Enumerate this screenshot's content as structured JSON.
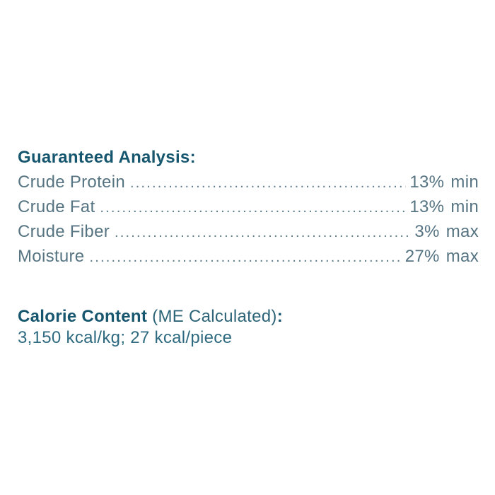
{
  "colors": {
    "heading": "#16566e",
    "body_text": "#567482",
    "dot_leader": "#5e7b89",
    "calorie_value_text": "#2e6a80",
    "background": "#ffffff"
  },
  "guaranteed_analysis": {
    "heading": "Guaranteed Analysis:",
    "rows": [
      {
        "label": "Crude Protein",
        "value": "13%",
        "qualifier": "min"
      },
      {
        "label": "Crude Fat",
        "value": "13%",
        "qualifier": "min"
      },
      {
        "label": "Crude Fiber",
        "value": "3%",
        "qualifier": "max"
      },
      {
        "label": "Moisture",
        "value": "27%",
        "qualifier": "max"
      }
    ]
  },
  "calorie_content": {
    "heading_bold": "Calorie Content",
    "heading_regular": " (ME Calculated)",
    "heading_colon": ":",
    "value_line": "3,150 kcal/kg; 27 kcal/piece"
  }
}
